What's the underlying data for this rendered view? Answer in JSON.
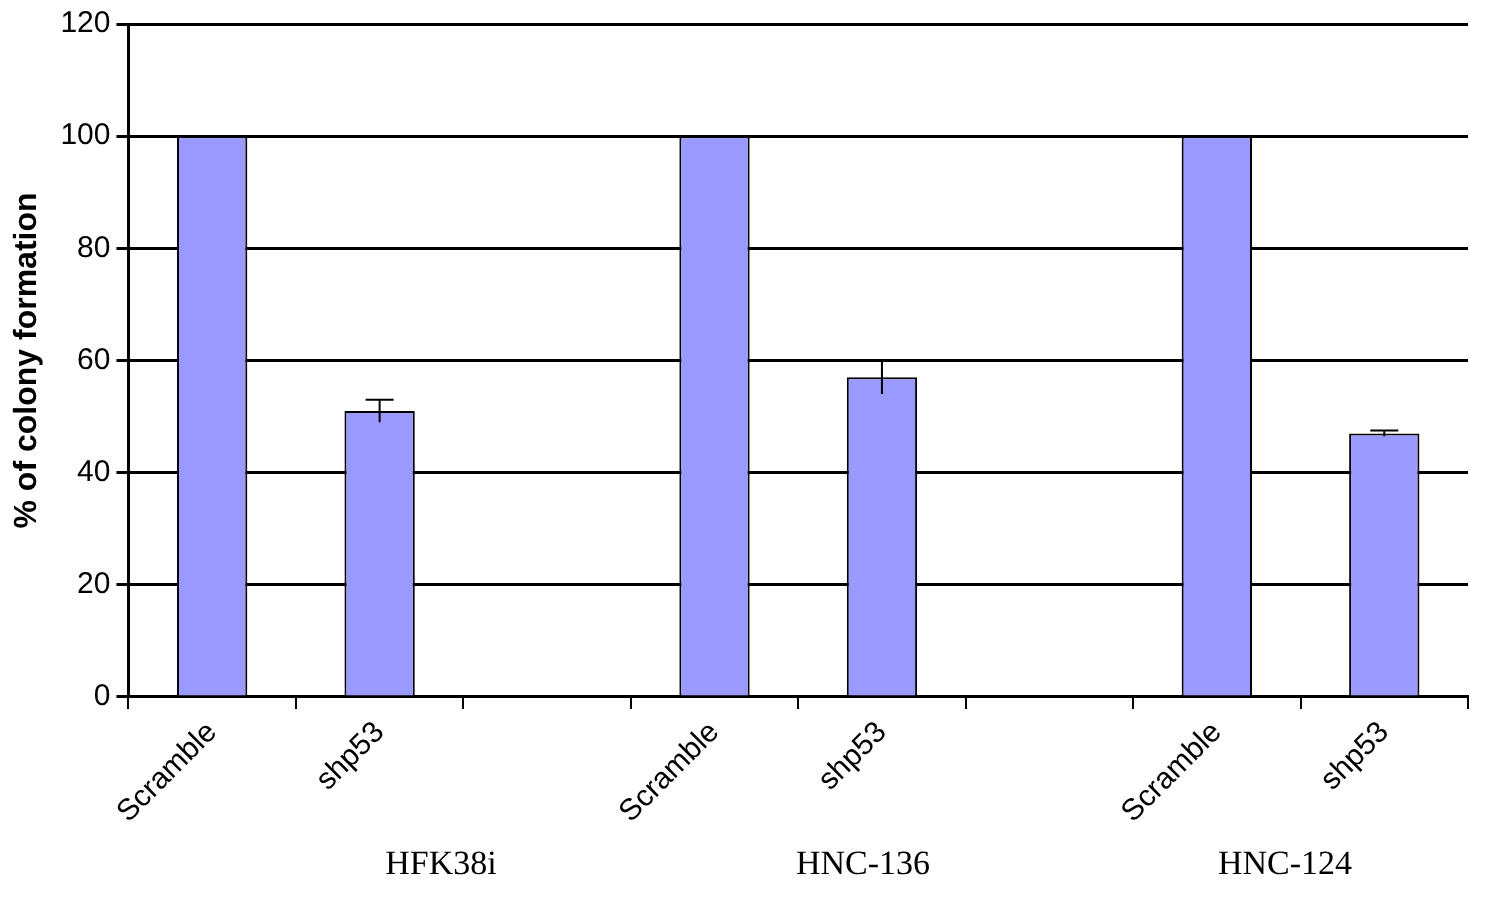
{
  "chart_data": {
    "type": "bar",
    "ylabel": "% of colony formation",
    "categories": [
      "Scramble",
      "shp53",
      null,
      "Scramble",
      "shp53",
      null,
      "Scramble",
      "shp53"
    ],
    "values": [
      100,
      51,
      null,
      100,
      57,
      null,
      100,
      47
    ],
    "errors": [
      null,
      2,
      null,
      null,
      3,
      null,
      null,
      0.5
    ],
    "color": "#9999ff",
    "ylim": [
      0,
      120
    ],
    "yticks": [
      0,
      20,
      40,
      60,
      80,
      100,
      120
    ],
    "grid": "y",
    "legend": false,
    "annotations": [
      "HFK38i",
      "HNC-136",
      "HNC-124"
    ]
  }
}
